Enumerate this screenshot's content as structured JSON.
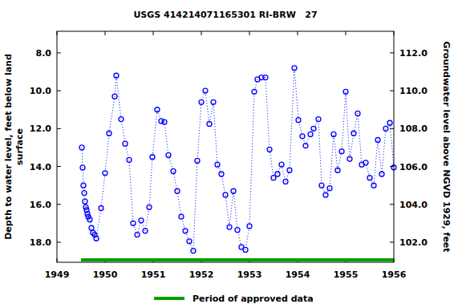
{
  "chart_data": {
    "type": "line",
    "title": "USGS 414214071165301 RI-BRW   27",
    "y_label": [
      "Depth to water level, feet below land",
      "surface"
    ],
    "y2_label": "Groundwater level above NGVD 1929, feet",
    "xlim": [
      1949,
      1956
    ],
    "xticks": [
      1949,
      1950,
      1951,
      1952,
      1953,
      1954,
      1955,
      1956
    ],
    "ylim": [
      19.06,
      6.86
    ],
    "yticks": [
      {
        "value": 8,
        "label": "8.0"
      },
      {
        "value": 10,
        "label": "10.0"
      },
      {
        "value": 12,
        "label": "12.0"
      },
      {
        "value": 14,
        "label": "14.0"
      },
      {
        "value": 16,
        "label": "16.0"
      },
      {
        "value": 18,
        "label": "18.0"
      }
    ],
    "y2lim": [
      100.94,
      113.14
    ],
    "y2ticks": [
      {
        "value": 102,
        "label": "102.0"
      },
      {
        "value": 104,
        "label": "104.0"
      },
      {
        "value": 106,
        "label": "106.0"
      },
      {
        "value": 108,
        "label": "108.0"
      },
      {
        "value": 110,
        "label": "110.0"
      },
      {
        "value": 112,
        "label": "112.0"
      }
    ],
    "grid": false,
    "x": [
      1949.517,
      1949.533,
      1949.55,
      1949.567,
      1949.583,
      1949.6,
      1949.617,
      1949.633,
      1949.65,
      1949.683,
      1949.717,
      1949.75,
      1949.783,
      1949.817,
      1949.917,
      1950.0,
      1950.083,
      1950.2,
      1950.233,
      1950.333,
      1950.417,
      1950.5,
      1950.583,
      1950.667,
      1950.75,
      1950.833,
      1950.917,
      1950.983,
      1951.083,
      1951.167,
      1951.233,
      1951.317,
      1951.417,
      1951.5,
      1951.583,
      1951.667,
      1951.75,
      1951.833,
      1951.917,
      1952.0,
      1952.083,
      1952.167,
      1952.25,
      1952.333,
      1952.417,
      1952.5,
      1952.583,
      1952.667,
      1952.75,
      1952.833,
      1952.917,
      1953.0,
      1953.1,
      1953.167,
      1953.25,
      1953.333,
      1953.417,
      1953.5,
      1953.583,
      1953.667,
      1953.75,
      1953.833,
      1953.933,
      1954.017,
      1954.1,
      1954.167,
      1954.267,
      1954.333,
      1954.433,
      1954.5,
      1954.583,
      1954.667,
      1954.75,
      1954.833,
      1954.917,
      1955.0,
      1955.083,
      1955.167,
      1955.25,
      1955.333,
      1955.417,
      1955.5,
      1955.583,
      1955.667,
      1955.75,
      1955.833,
      1955.917,
      1956.0
    ],
    "series": [
      {
        "name": "Depth to water level",
        "color": "#0000ff",
        "marker": "circle",
        "line_style": "dotted",
        "values": [
          13.0,
          14.06,
          15.0,
          15.4,
          15.85,
          16.15,
          16.3,
          16.5,
          16.65,
          16.8,
          17.25,
          17.5,
          17.6,
          17.8,
          16.2,
          14.35,
          12.25,
          10.3,
          9.2,
          11.5,
          12.8,
          13.65,
          17.0,
          17.6,
          16.85,
          17.4,
          16.15,
          13.5,
          11.0,
          11.6,
          11.65,
          13.4,
          14.25,
          15.3,
          16.65,
          17.4,
          17.95,
          18.45,
          13.7,
          10.6,
          10.0,
          11.75,
          10.6,
          13.9,
          14.4,
          15.5,
          17.2,
          15.3,
          17.35,
          18.25,
          18.4,
          17.15,
          10.05,
          9.4,
          9.3,
          9.3,
          13.1,
          14.6,
          14.4,
          13.9,
          14.8,
          14.2,
          8.8,
          11.55,
          12.4,
          12.9,
          12.3,
          12.0,
          11.5,
          15.0,
          15.5,
          15.15,
          12.3,
          14.2,
          13.2,
          10.05,
          13.6,
          12.25,
          11.2,
          13.9,
          13.8,
          14.6,
          15.0,
          12.6,
          14.4,
          12.0,
          11.7,
          14.05
        ]
      }
    ],
    "approved_period": {
      "name": "Period of approved data",
      "color": "#00a000",
      "x": [
        1949.5,
        1956
      ]
    }
  }
}
